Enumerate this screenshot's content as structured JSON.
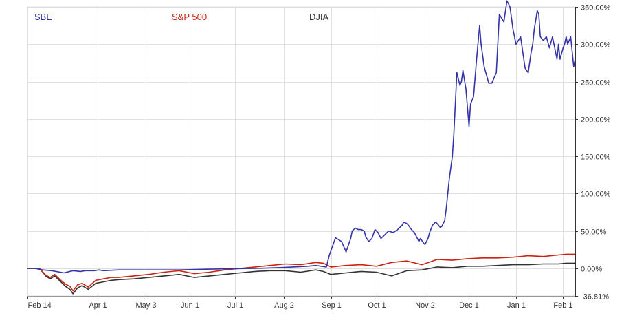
{
  "chart_data": {
    "type": "line",
    "title": "",
    "xlabel": "",
    "ylabel": "",
    "x_tick_labels": [
      "Feb 14",
      "Apr 1",
      "May 3",
      "Jun 1",
      "Jul 1",
      "Aug 2",
      "Sep 1",
      "Oct 1",
      "Nov 2",
      "Dec 1",
      "Jan 1",
      "Feb 1"
    ],
    "y_tick_labels": [
      "350.00%",
      "300.00%",
      "250.00%",
      "200.00%",
      "150.00%",
      "100.00%",
      "50.00%",
      "0.00%",
      "-36.81%"
    ],
    "ylim": [
      -36.81,
      350
    ],
    "grid": true,
    "legend_position": "top-left",
    "series": [
      {
        "name": "SBE",
        "color": "#3333aa",
        "x": [
          0,
          5,
          10,
          16,
          24,
          30,
          35,
          38,
          44,
          47,
          50,
          60,
          80,
          100,
          120,
          150,
          165,
          175,
          185,
          190,
          197,
          199,
          203,
          207,
          210,
          213,
          214,
          216,
          218,
          220,
          222,
          223,
          225,
          227,
          229,
          231,
          233,
          235,
          238,
          241,
          244,
          247,
          248,
          250,
          251,
          253,
          255,
          257,
          258,
          259,
          261,
          262,
          263,
          264,
          265,
          267,
          269,
          270,
          272,
          273,
          275,
          276,
          278,
          280,
          281,
          283,
          285,
          286,
          287,
          289,
          291,
          292,
          294,
          296,
          298,
          299,
          301,
          304,
          306,
          309,
          311,
          314,
          316,
          318,
          320,
          322,
          325,
          328,
          330,
          332,
          333,
          334,
          336,
          337,
          338,
          340,
          342,
          344,
          346,
          348,
          349,
          350,
          351,
          353,
          354,
          355,
          356,
          358,
          359,
          360,
          361
        ],
        "values": [
          0,
          0,
          -2,
          -3,
          -6,
          -3,
          -4,
          -3,
          -3,
          -2,
          -3,
          -2,
          -2,
          -2,
          -1,
          0,
          1,
          2,
          3,
          4,
          2,
          18,
          41,
          36,
          22,
          40,
          50,
          54,
          52,
          52,
          50,
          42,
          36,
          40,
          52,
          48,
          40,
          44,
          50,
          48,
          52,
          58,
          62,
          60,
          58,
          52,
          48,
          40,
          36,
          40,
          34,
          32,
          36,
          40,
          48,
          58,
          62,
          60,
          55,
          56,
          64,
          80,
          120,
          150,
          180,
          262,
          245,
          250,
          265,
          240,
          190,
          220,
          230,
          280,
          325,
          300,
          270,
          248,
          248,
          262,
          340,
          330,
          358,
          350,
          320,
          300,
          310,
          268,
          262,
          290,
          300,
          320,
          345,
          340,
          310,
          305,
          310,
          295,
          310,
          290,
          280,
          300,
          280,
          295,
          300,
          310,
          300,
          310,
          290,
          270,
          280
        ],
        "note": ""
      },
      {
        "name": "S&P 500",
        "color": "#cc2211",
        "x": [
          0,
          8,
          12,
          15,
          18,
          22,
          25,
          28,
          30,
          33,
          36,
          40,
          45,
          50,
          55,
          60,
          70,
          80,
          90,
          100,
          110,
          120,
          130,
          140,
          150,
          160,
          170,
          180,
          190,
          195,
          200,
          210,
          220,
          230,
          240,
          250,
          260,
          270,
          280,
          290,
          300,
          310,
          320,
          330,
          340,
          350,
          355,
          361
        ],
        "values": [
          0,
          0,
          -9,
          -12,
          -8,
          -16,
          -21,
          -24,
          -30,
          -22,
          -20,
          -25,
          -16,
          -14,
          -12,
          -12,
          -10,
          -8,
          -5,
          -3,
          -7,
          -5,
          -2,
          0,
          2,
          4,
          6,
          5,
          8,
          7,
          2,
          4,
          5,
          3,
          8,
          10,
          5,
          12,
          11,
          13,
          14,
          14,
          15,
          17,
          16,
          18,
          19,
          19
        ],
        "note": ""
      },
      {
        "name": "DJIA",
        "color": "#333333",
        "x": [
          0,
          8,
          12,
          15,
          18,
          22,
          25,
          28,
          30,
          33,
          36,
          40,
          45,
          50,
          55,
          60,
          70,
          80,
          90,
          100,
          110,
          120,
          130,
          140,
          150,
          160,
          170,
          180,
          190,
          195,
          200,
          210,
          220,
          230,
          240,
          250,
          260,
          270,
          280,
          290,
          300,
          310,
          320,
          330,
          340,
          350,
          355,
          361
        ],
        "values": [
          0,
          0,
          -10,
          -14,
          -10,
          -18,
          -24,
          -28,
          -34,
          -26,
          -23,
          -28,
          -20,
          -18,
          -16,
          -15,
          -14,
          -12,
          -10,
          -8,
          -12,
          -10,
          -8,
          -6,
          -4,
          -3,
          -3,
          -5,
          -2,
          -4,
          -8,
          -6,
          -4,
          -5,
          -10,
          -3,
          -2,
          2,
          1,
          3,
          3,
          4,
          5,
          5,
          6,
          6,
          7,
          7
        ],
        "note": ""
      }
    ]
  }
}
